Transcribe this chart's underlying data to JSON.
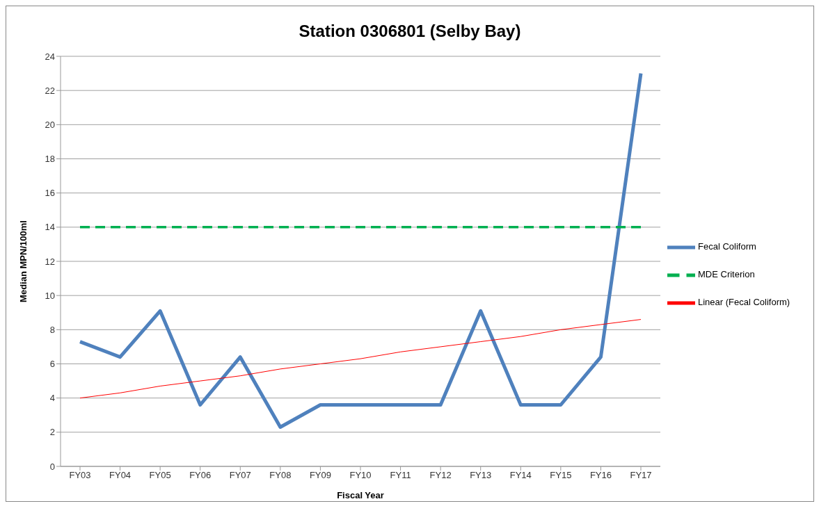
{
  "chart_data": {
    "type": "line",
    "title": "Station 0306801 (Selby Bay)",
    "xlabel": "Fiscal Year",
    "ylabel": "Median MPN/100ml",
    "categories": [
      "FY03",
      "FY04",
      "FY05",
      "FY06",
      "FY07",
      "FY08",
      "FY09",
      "FY10",
      "FY11",
      "FY12",
      "FY13",
      "FY14",
      "FY15",
      "FY16",
      "FY17"
    ],
    "series": [
      {
        "name": "Fecal Coliform",
        "color": "#4f81bd",
        "values": [
          7.3,
          6.4,
          9.1,
          3.6,
          6.4,
          2.3,
          3.6,
          3.6,
          3.6,
          3.6,
          9.1,
          3.6,
          3.6,
          6.4,
          23
        ]
      },
      {
        "name": "MDE Criterion",
        "color": "#00b050",
        "line_style": "dashed",
        "values": [
          14,
          14,
          14,
          14,
          14,
          14,
          14,
          14,
          14,
          14,
          14,
          14,
          14,
          14,
          14
        ]
      },
      {
        "name": "Linear (Fecal Coliform)",
        "color": "#ff0000",
        "values": [
          4.0,
          4.3,
          4.7,
          5.0,
          5.3,
          5.7,
          6.0,
          6.3,
          6.7,
          7.0,
          7.3,
          7.6,
          8.0,
          8.3,
          8.6
        ]
      }
    ],
    "ylim": [
      0,
      24
    ],
    "yticks": [
      0,
      2,
      4,
      6,
      8,
      10,
      12,
      14,
      16,
      18,
      20,
      22,
      24
    ],
    "grid": "y",
    "legend": "right",
    "marker": "none",
    "line_style": "solid"
  }
}
